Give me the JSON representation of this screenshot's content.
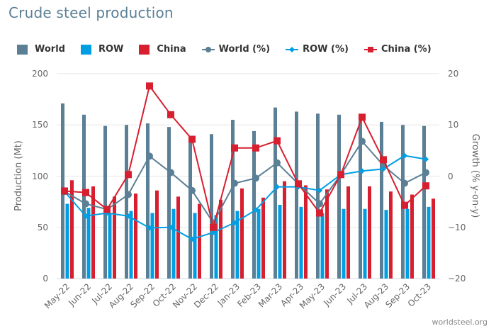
{
  "title": "Crude steel production",
  "credit": "worldsteel.org",
  "legend": [
    {
      "label": "World",
      "type": "bar",
      "color": "#5b7f95"
    },
    {
      "label": "ROW",
      "type": "bar",
      "color": "#009fe3"
    },
    {
      "label": "China",
      "type": "bar",
      "color": "#d71f2f"
    },
    {
      "label": "World (%)",
      "type": "line-circle",
      "color": "#5b7f95"
    },
    {
      "label": "ROW (%)",
      "type": "line-diamond",
      "color": "#009fe3"
    },
    {
      "label": "China (%)",
      "type": "line-square",
      "color": "#d71f2f"
    }
  ],
  "chart_data": {
    "type": "bar+line",
    "title": "Crude steel production",
    "categories": [
      "May-22",
      "Jun-22",
      "Jul-22",
      "Aug-22",
      "Sep-22",
      "Oct-22",
      "Nov-22",
      "Dec-22",
      "Jan-23",
      "Feb-23",
      "Mar-23",
      "Apr-23",
      "May-23",
      "Jun-23",
      "Jul-23",
      "Aug-23",
      "Sep-23",
      "Oct-23"
    ],
    "ylabel": "Production (Mt)",
    "ylabel_right": "Growth (% y-on-y)",
    "ylim": [
      0,
      200
    ],
    "ylim_right": [
      -20,
      20
    ],
    "yticks": [
      "0",
      "50",
      "100",
      "150",
      "200"
    ],
    "yticks_right": [
      "−20",
      "−10",
      "0",
      "10",
      "20"
    ],
    "grid": true,
    "legend_position": "top",
    "bar_series": [
      {
        "name": "World",
        "color": "#5b7f95",
        "values": [
          171,
          160,
          149,
          150,
          151.5,
          148,
          138,
          141,
          155,
          144,
          167,
          163,
          161,
          160,
          158,
          153,
          150,
          149
        ]
      },
      {
        "name": "ROW",
        "color": "#009fe3",
        "values": [
          73,
          69,
          64,
          66,
          64,
          68,
          64,
          62,
          66,
          68,
          72,
          70,
          64,
          68,
          68,
          67,
          68,
          70
        ]
      },
      {
        "name": "China",
        "color": "#d71f2f",
        "values": [
          96,
          90,
          80,
          83,
          86,
          80,
          73,
          77,
          88,
          79,
          95,
          91,
          87,
          90,
          90,
          85,
          82,
          78
        ]
      }
    ],
    "line_series": [
      {
        "name": "World (%)",
        "color": "#5b7f95",
        "marker": "circle",
        "values": [
          -3.0,
          -5.4,
          -6.5,
          -3.6,
          3.9,
          0.7,
          -2.8,
          -9.1,
          -1.4,
          -0.4,
          2.6,
          -1.5,
          -5.4,
          0.3,
          6.8,
          2.1,
          -1.4,
          0.7
        ]
      },
      {
        "name": "ROW (%)",
        "color": "#009fe3",
        "marker": "diamond",
        "values": [
          -3.0,
          -7.8,
          -7.2,
          -7.8,
          -10.1,
          -10.0,
          -12.3,
          -11.0,
          -9.1,
          -6.6,
          -2.1,
          -2.1,
          -2.8,
          0.3,
          1.0,
          1.4,
          4.0,
          3.3
        ]
      },
      {
        "name": "China (%)",
        "color": "#d71f2f",
        "marker": "square",
        "values": [
          -2.9,
          -3.2,
          -6.5,
          0.3,
          17.6,
          12.0,
          7.2,
          -10.0,
          5.5,
          5.5,
          6.9,
          -1.5,
          -7.2,
          0.3,
          11.5,
          3.2,
          -5.7,
          -1.9
        ]
      }
    ]
  }
}
